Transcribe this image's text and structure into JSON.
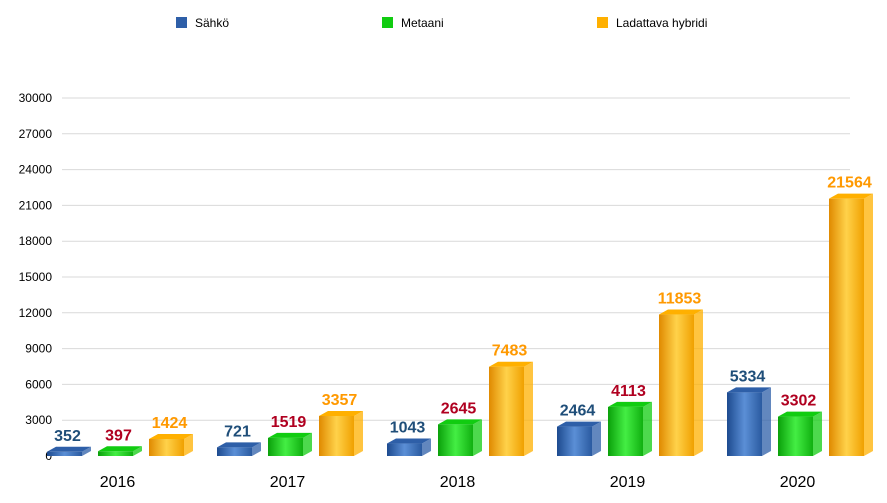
{
  "chart_data": {
    "type": "bar",
    "title": "",
    "xlabel": "",
    "ylabel": "",
    "categories": [
      "2016",
      "2017",
      "2018",
      "2019",
      "2020"
    ],
    "series": [
      {
        "name": "Sähkö",
        "values": [
          352,
          721,
          1043,
          2464,
          5334
        ],
        "color": "#2e5fa8",
        "label_color": "#1f4e79"
      },
      {
        "name": "Metaani",
        "values": [
          397,
          1519,
          2645,
          4113,
          3302
        ],
        "color": "#11cc11",
        "label_color": "#b00020"
      },
      {
        "name": "Ladattava hybridi",
        "values": [
          1424,
          3357,
          7483,
          11853,
          21564
        ],
        "color": "#ffb000",
        "label_color": "#ff9900"
      }
    ],
    "ylim": [
      0,
      30000
    ],
    "yticks": [
      "0",
      "3000",
      "6000",
      "9000",
      "12000",
      "15000",
      "18000",
      "21000",
      "24000",
      "27000",
      "30000"
    ],
    "ytick_values": [
      0,
      3000,
      6000,
      9000,
      12000,
      15000,
      18000,
      21000,
      24000,
      27000,
      30000
    ],
    "grid": true,
    "legend_position": "top"
  }
}
